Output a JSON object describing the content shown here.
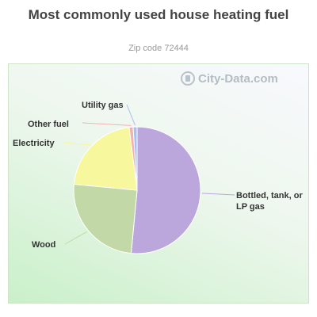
{
  "chart_data": {
    "type": "pie",
    "title": "Most commonly used house heating fuel",
    "subtitle": "Zip code 72444",
    "slices": [
      {
        "label": "Bottled, tank, or LP gas",
        "value": 51.5,
        "color": "#bba7db"
      },
      {
        "label": "Wood",
        "value": 25.0,
        "color": "#c2d9a7"
      },
      {
        "label": "Electricity",
        "value": 21.5,
        "color": "#f7f79d"
      },
      {
        "label": "Other fuel",
        "value": 1.0,
        "color": "#f2b1b1"
      },
      {
        "label": "Utility gas",
        "value": 1.0,
        "color": "#a9bff0"
      }
    ]
  },
  "watermark": {
    "text": "City-Data.com",
    "icon": "city-data-logo-icon"
  }
}
